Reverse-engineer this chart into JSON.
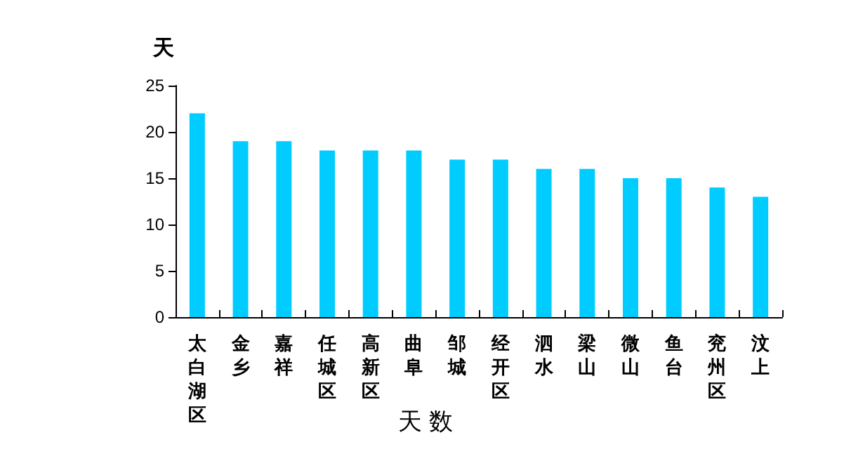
{
  "chart_data": {
    "type": "bar",
    "ylabel": "天",
    "xlabel": "天 数",
    "categories": [
      "太白湖区",
      "金乡",
      "嘉祥",
      "任城区",
      "高新区",
      "曲阜",
      "邹城",
      "经开区",
      "泗水",
      "梁山",
      "微山",
      "鱼台",
      "兖州区",
      "汶上"
    ],
    "values": [
      22,
      19,
      19,
      18,
      18,
      18,
      17,
      17,
      16,
      16,
      15,
      15,
      14,
      13
    ],
    "color": "#00ccff",
    "ylim": [
      0,
      25
    ],
    "yticks": [
      0,
      5,
      10,
      15,
      20,
      25
    ],
    "grid": false
  }
}
